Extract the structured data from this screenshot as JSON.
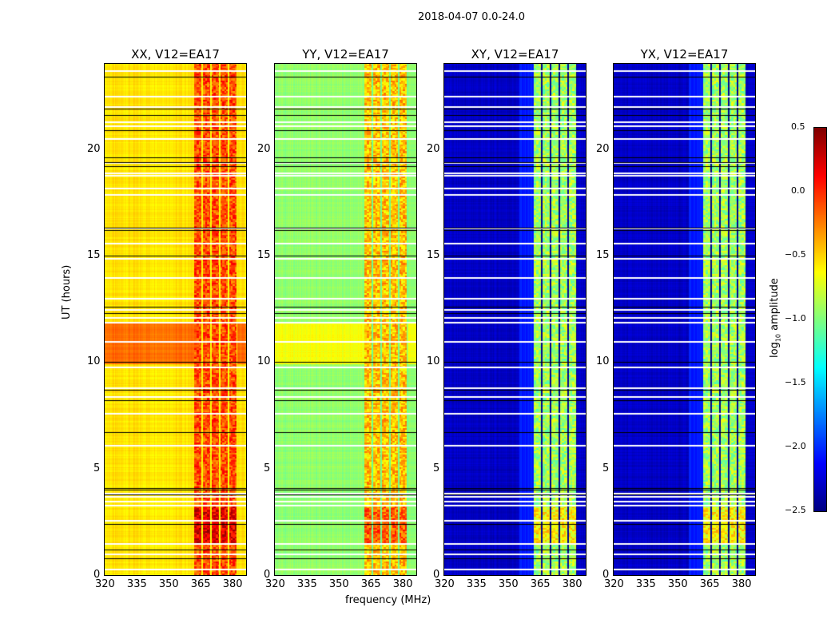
{
  "suptitle": "2018-04-07 0.0-24.0",
  "chart_data": {
    "type": "heatmap",
    "title": "2018-04-07 0.0-24.0",
    "xlabel": "frequency (MHz)",
    "ylabel": "UT (hours)",
    "xlim": [
      320,
      386.5
    ],
    "ylim": [
      0,
      24
    ],
    "xticks": [
      "320",
      "335",
      "350",
      "365",
      "380"
    ],
    "yticks": [
      "0",
      "5",
      "10",
      "15",
      "20"
    ],
    "colorbar": {
      "label_prefix": "log",
      "label_sub": "10",
      "label_suffix": " amplitude",
      "range": [
        -2.5,
        0.5
      ],
      "ticks": [
        "0.5",
        "0.0",
        "−0.5",
        "−1.0",
        "−1.5",
        "−2.0",
        "−2.5"
      ],
      "colormap": "jet"
    },
    "panels": [
      {
        "title": "XX, V12=EA17",
        "base_level": -0.55,
        "band_level": -0.1,
        "band_range_mhz": [
          362,
          382
        ]
      },
      {
        "title": "YY, V12=EA17",
        "base_level": -0.95,
        "band_level": -0.45,
        "band_range_mhz": [
          362,
          382
        ]
      },
      {
        "title": "XY, V12=EA17",
        "base_level": -2.3,
        "band_level": -0.9,
        "band_range_mhz": [
          362,
          382
        ]
      },
      {
        "title": "YX, V12=EA17",
        "base_level": -2.3,
        "band_level": -0.9,
        "band_range_mhz": [
          362,
          382
        ]
      }
    ],
    "flagged_hours": [
      0.3,
      1.0,
      1.5,
      2.6,
      3.3,
      3.5,
      3.7,
      3.85,
      6.1,
      7.6,
      8.4,
      8.8,
      9.8,
      11.0,
      11.9,
      12.1,
      12.5,
      13.0,
      14.0,
      14.9,
      15.6,
      16.3,
      17.9,
      18.2,
      18.8,
      18.9,
      19.4,
      20.5,
      21.1,
      21.3,
      22.0,
      22.5,
      23.7
    ],
    "black_line_hours": [
      0.8,
      1.2,
      2.4,
      3.8,
      4.0,
      4.1,
      6.7,
      8.2,
      8.7,
      10.0,
      12.3,
      12.6,
      15.0,
      16.2,
      16.3,
      19.2,
      19.4,
      19.6,
      20.9,
      21.6,
      21.9,
      23.4
    ]
  }
}
